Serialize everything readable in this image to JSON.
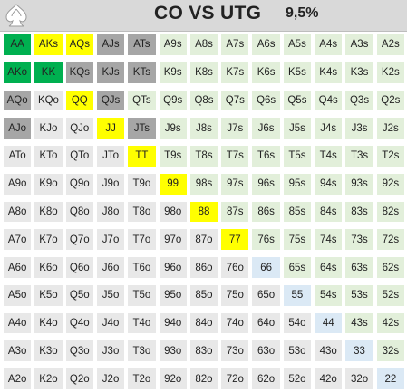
{
  "header": {
    "title": "CO VS UTG",
    "percent": "9,5%",
    "logo": "spade-leaf-logo"
  },
  "colors": {
    "green": "#00b050",
    "yellow": "#ffff00",
    "gray": "#a6a6a6",
    "pair": "#dbe9f5",
    "suited": "#e2efda",
    "offsuit": "#e8e8e8"
  },
  "grid": [
    [
      "AA",
      "AKs",
      "AQs",
      "AJs",
      "ATs",
      "A9s",
      "A8s",
      "A7s",
      "A6s",
      "A5s",
      "A4s",
      "A3s",
      "A2s"
    ],
    [
      "AKo",
      "KK",
      "KQs",
      "KJs",
      "KTs",
      "K9s",
      "K8s",
      "K7s",
      "K6s",
      "K5s",
      "K4s",
      "K3s",
      "K2s"
    ],
    [
      "AQo",
      "KQo",
      "QQ",
      "QJs",
      "QTs",
      "Q9s",
      "Q8s",
      "Q7s",
      "Q6s",
      "Q5s",
      "Q4s",
      "Q3s",
      "Q2s"
    ],
    [
      "AJo",
      "KJo",
      "QJo",
      "JJ",
      "JTs",
      "J9s",
      "J8s",
      "J7s",
      "J6s",
      "J5s",
      "J4s",
      "J3s",
      "J2s"
    ],
    [
      "ATo",
      "KTo",
      "QTo",
      "JTo",
      "TT",
      "T9s",
      "T8s",
      "T7s",
      "T6s",
      "T5s",
      "T4s",
      "T3s",
      "T2s"
    ],
    [
      "A9o",
      "K9o",
      "Q9o",
      "J9o",
      "T9o",
      "99",
      "98s",
      "97s",
      "96s",
      "95s",
      "94s",
      "93s",
      "92s"
    ],
    [
      "A8o",
      "K8o",
      "Q8o",
      "J8o",
      "T8o",
      "98o",
      "88",
      "87s",
      "86s",
      "85s",
      "84s",
      "83s",
      "82s"
    ],
    [
      "A7o",
      "K7o",
      "Q7o",
      "J7o",
      "T7o",
      "97o",
      "87o",
      "77",
      "76s",
      "75s",
      "74s",
      "73s",
      "72s"
    ],
    [
      "A6o",
      "K6o",
      "Q6o",
      "J6o",
      "T6o",
      "96o",
      "86o",
      "76o",
      "66",
      "65s",
      "64s",
      "63s",
      "62s"
    ],
    [
      "A5o",
      "K5o",
      "Q5o",
      "J5o",
      "T5o",
      "95o",
      "85o",
      "75o",
      "65o",
      "55",
      "54s",
      "53s",
      "52s"
    ],
    [
      "A4o",
      "K4o",
      "Q4o",
      "J4o",
      "T4o",
      "94o",
      "84o",
      "74o",
      "64o",
      "54o",
      "44",
      "43s",
      "42s"
    ],
    [
      "A3o",
      "K3o",
      "Q3o",
      "J3o",
      "T3o",
      "93o",
      "83o",
      "73o",
      "63o",
      "53o",
      "43o",
      "33",
      "32s"
    ],
    [
      "A2o",
      "K2o",
      "Q2o",
      "J2o",
      "T2o",
      "92o",
      "82o",
      "72o",
      "62o",
      "52o",
      "42o",
      "32o",
      "22"
    ]
  ],
  "highlights": {
    "green": [
      "AA",
      "AKo",
      "KK"
    ],
    "yellow": [
      "AKs",
      "AQs",
      "QQ",
      "JJ",
      "TT",
      "99",
      "88",
      "77"
    ],
    "gray": [
      "AJs",
      "ATs",
      "KQs",
      "KJs",
      "KTs",
      "AQo",
      "QJs",
      "AJo",
      "JTs"
    ]
  }
}
